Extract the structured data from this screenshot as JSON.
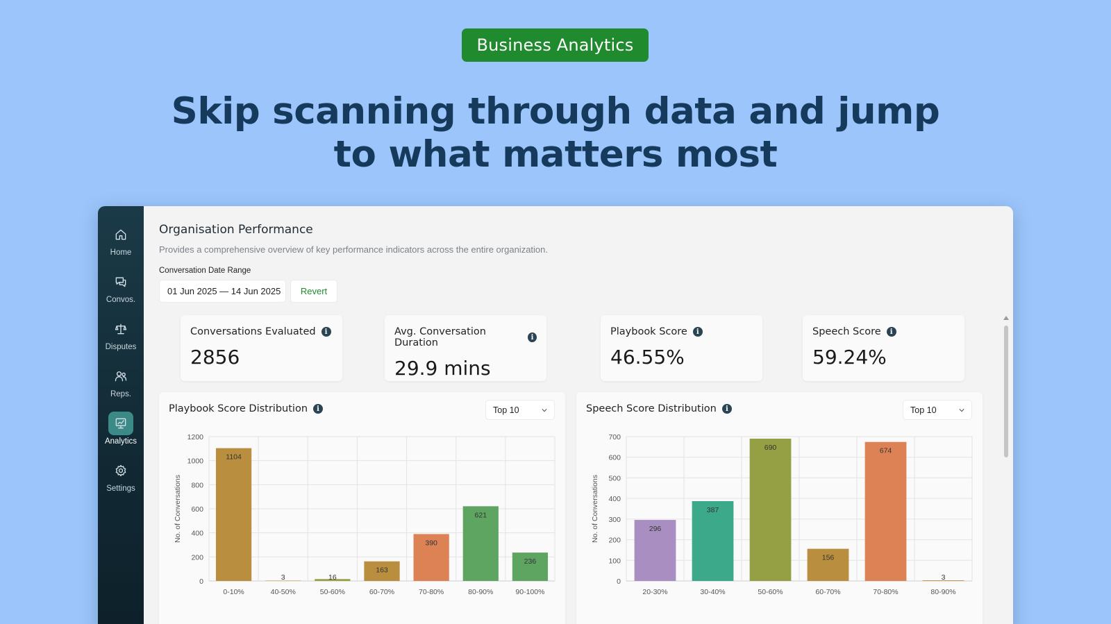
{
  "badge": "Business Analytics",
  "headline": {
    "line1": "Skip scanning through data and jump",
    "line2": "to what matters most"
  },
  "sidebar": {
    "items": [
      {
        "label": "Home",
        "icon": "home-icon",
        "active": false
      },
      {
        "label": "Convos.",
        "icon": "chat-icon",
        "active": false
      },
      {
        "label": "Disputes",
        "icon": "scales-icon",
        "active": false
      },
      {
        "label": "Reps.",
        "icon": "users-icon",
        "active": false
      },
      {
        "label": "Analytics",
        "icon": "analytics-icon",
        "active": true
      },
      {
        "label": "Settings",
        "icon": "gear-icon",
        "active": false
      }
    ]
  },
  "page": {
    "title": "Organisation Performance",
    "subtitle": "Provides a comprehensive overview of key performance indicators across the entire organization.",
    "date_range_label": "Conversation Date Range",
    "date_range_value": "01 Jun 2025 — 14 Jun 2025",
    "revert_label": "Revert"
  },
  "kpis": [
    {
      "label": "Conversations Evaluated",
      "value": "2856"
    },
    {
      "label": "Avg. Conversation Duration",
      "value": "29.9 mins"
    },
    {
      "label": "Playbook Score",
      "value": "46.55%"
    },
    {
      "label": "Speech Score",
      "value": "59.24%"
    }
  ],
  "panels": {
    "playbook": {
      "title": "Playbook Score Distribution",
      "dropdown": "Top 10"
    },
    "speech": {
      "title": "Speech Score Distribution",
      "dropdown": "Top 10"
    }
  },
  "colors": {
    "accent_green": "#1f8a2e",
    "sidebar_bg": "#122a35",
    "active_nav": "#3b8a87"
  },
  "chart_data": [
    {
      "type": "bar",
      "title": "Playbook Score Distribution",
      "xlabel": "",
      "ylabel": "No. of Conversations",
      "categories": [
        "0-10%",
        "40-50%",
        "50-60%",
        "60-70%",
        "70-80%",
        "80-90%",
        "90-100%"
      ],
      "values": [
        1104,
        3,
        16,
        163,
        390,
        621,
        236
      ],
      "colors": [
        "#b98f3f",
        "#b98f3f",
        "#9aa047",
        "#b98f3f",
        "#dc8255",
        "#5fa562",
        "#5fa562"
      ],
      "ylim": [
        0,
        1200
      ],
      "yticks": [
        0,
        200,
        400,
        600,
        800,
        1000,
        1200
      ],
      "grid": true
    },
    {
      "type": "bar",
      "title": "Speech Score Distribution",
      "xlabel": "",
      "ylabel": "No. of Conversations",
      "categories": [
        "20-30%",
        "30-40%",
        "50-60%",
        "60-70%",
        "70-80%",
        "80-90%"
      ],
      "values": [
        296,
        387,
        690,
        156,
        674,
        3
      ],
      "colors": [
        "#a98fc1",
        "#3ba98a",
        "#94a043",
        "#b98f3f",
        "#dc8255",
        "#b98f3f"
      ],
      "ylim": [
        0,
        700
      ],
      "yticks": [
        0,
        100,
        200,
        300,
        400,
        500,
        600,
        700
      ],
      "grid": true
    }
  ]
}
